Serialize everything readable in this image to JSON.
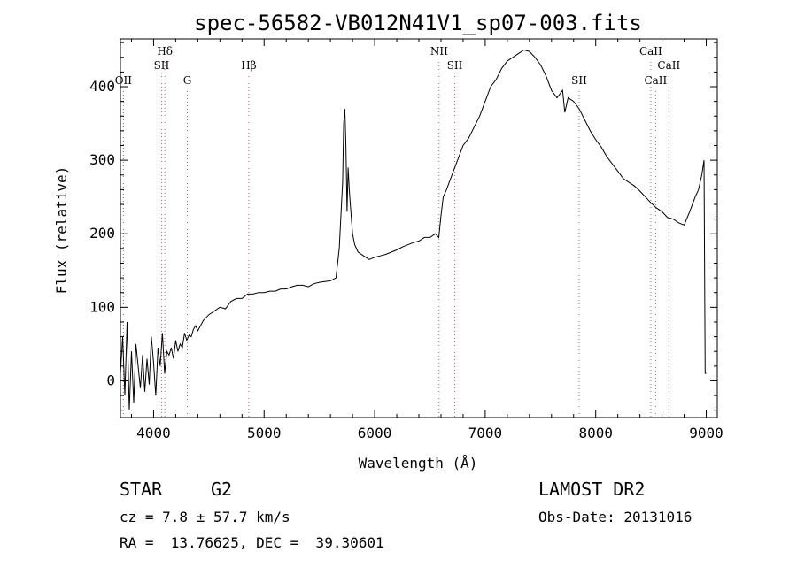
{
  "chart_data": {
    "type": "line",
    "title": "spec-56582-VB012N41V1_sp07-003.fits",
    "xlabel": "Wavelength (Å)",
    "ylabel": "Flux (relative)",
    "xlim": [
      3700,
      9100
    ],
    "ylim": [
      -50,
      465
    ],
    "x_ticks": [
      4000,
      5000,
      6000,
      7000,
      8000,
      9000
    ],
    "y_ticks": [
      0,
      100,
      200,
      300,
      400
    ],
    "grid": false,
    "line_color": "#000000",
    "marker_color": "#aa6666",
    "spectral_lines": [
      {
        "name": "OII",
        "wavelength": 3727,
        "row": 3
      },
      {
        "name": "Hδ",
        "wavelength": 4102,
        "row": 1
      },
      {
        "name": "SII",
        "wavelength": 4072,
        "row": 2
      },
      {
        "name": "G",
        "wavelength": 4305,
        "row": 3
      },
      {
        "name": "Hβ",
        "wavelength": 4861,
        "row": 2
      },
      {
        "name": "NII",
        "wavelength": 6583,
        "row": 1
      },
      {
        "name": "SII",
        "wavelength": 6725,
        "row": 2
      },
      {
        "name": "SII",
        "wavelength": 7850,
        "row": 3
      },
      {
        "name": "CaII",
        "wavelength": 8498,
        "row": 1
      },
      {
        "name": "CaII",
        "wavelength": 8542,
        "row": 3
      },
      {
        "name": "CaII",
        "wavelength": 8662,
        "row": 2
      }
    ],
    "series": [
      {
        "x": [
          3700,
          3720,
          3740,
          3760,
          3780,
          3800,
          3820,
          3840,
          3860,
          3880,
          3900,
          3920,
          3940,
          3960,
          3980,
          4000,
          4020,
          4040,
          4060,
          4080,
          4100,
          4120,
          4140,
          4160,
          4180,
          4200,
          4220,
          4240,
          4260,
          4280,
          4300,
          4320,
          4340,
          4360,
          4380,
          4400,
          4450,
          4500,
          4550,
          4600,
          4650,
          4700,
          4750,
          4800,
          4850,
          4900,
          4950,
          5000,
          5050,
          5100,
          5150,
          5200,
          5250,
          5300,
          5350,
          5400,
          5450,
          5500,
          5550,
          5600,
          5650,
          5680,
          5700,
          5710,
          5720,
          5730,
          5740,
          5750,
          5760,
          5770,
          5780,
          5800,
          5820,
          5850,
          5900,
          5950,
          6000,
          6050,
          6100,
          6150,
          6200,
          6250,
          6300,
          6350,
          6400,
          6450,
          6500,
          6550,
          6580,
          6600,
          6620,
          6650,
          6700,
          6750,
          6800,
          6850,
          6900,
          6950,
          7000,
          7050,
          7100,
          7150,
          7200,
          7250,
          7300,
          7350,
          7400,
          7450,
          7500,
          7550,
          7600,
          7650,
          7700,
          7720,
          7750,
          7800,
          7850,
          7900,
          7950,
          8000,
          8050,
          8100,
          8150,
          8200,
          8250,
          8300,
          8350,
          8400,
          8450,
          8500,
          8550,
          8600,
          8650,
          8700,
          8750,
          8800,
          8850,
          8900,
          8930,
          8960,
          8980,
          8990,
          9000
        ],
        "y": [
          10,
          60,
          -20,
          80,
          -40,
          40,
          -30,
          50,
          20,
          -10,
          35,
          -15,
          30,
          -5,
          60,
          25,
          -20,
          45,
          20,
          65,
          10,
          40,
          35,
          45,
          30,
          55,
          40,
          50,
          45,
          65,
          55,
          62,
          60,
          70,
          75,
          68,
          82,
          90,
          95,
          100,
          98,
          108,
          112,
          112,
          118,
          118,
          120,
          120,
          122,
          122,
          125,
          125,
          128,
          130,
          130,
          128,
          132,
          134,
          135,
          136,
          140,
          180,
          240,
          270,
          350,
          370,
          320,
          230,
          290,
          260,
          240,
          200,
          185,
          175,
          170,
          165,
          168,
          170,
          172,
          175,
          178,
          182,
          185,
          188,
          190,
          195,
          195,
          200,
          195,
          225,
          250,
          260,
          280,
          300,
          320,
          330,
          345,
          360,
          380,
          400,
          410,
          425,
          435,
          440,
          445,
          450,
          448,
          440,
          430,
          415,
          395,
          385,
          395,
          365,
          385,
          380,
          370,
          355,
          340,
          328,
          318,
          305,
          295,
          285,
          275,
          270,
          265,
          258,
          250,
          242,
          235,
          230,
          222,
          220,
          215,
          212,
          230,
          250,
          260,
          280,
          300,
          10,
          10
        ]
      }
    ]
  },
  "info": {
    "class_label": "STAR",
    "subclass_label": "G2",
    "cz_text": "cz = 7.8 ± 57.7 km/s",
    "radec_text": "RA =  13.76625, DEC =  39.30601",
    "survey_text": "LAMOST DR2",
    "obsdate_text": "Obs-Date: 20131016"
  }
}
